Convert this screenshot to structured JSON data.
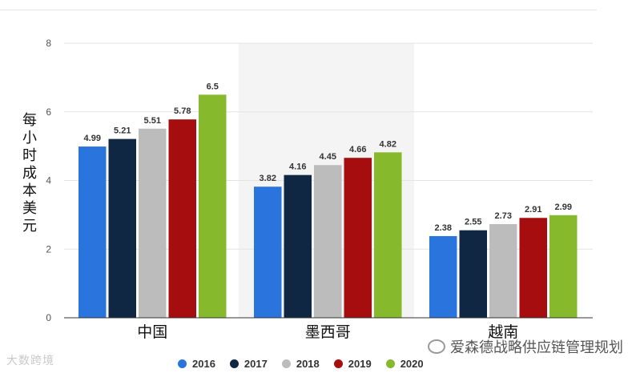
{
  "chart_data": {
    "type": "bar",
    "categories": [
      "中国",
      "墨西哥",
      "越南"
    ],
    "series": [
      {
        "name": "2016",
        "color": "#2a75dd",
        "values": [
          4.99,
          3.82,
          2.38
        ],
        "labels": [
          "4.99",
          "3.82",
          "2.38"
        ]
      },
      {
        "name": "2017",
        "color": "#0f2743",
        "values": [
          5.21,
          4.16,
          2.55
        ],
        "labels": [
          "5.21",
          "4.16",
          "2.55"
        ]
      },
      {
        "name": "2018",
        "color": "#bcbcbc",
        "values": [
          5.51,
          4.45,
          2.73
        ],
        "labels": [
          "5.51",
          "4.45",
          "2.73"
        ]
      },
      {
        "name": "2019",
        "color": "#a50d0f",
        "values": [
          5.78,
          4.66,
          2.91
        ],
        "labels": [
          "5.78",
          "4.66",
          "2.91"
        ]
      },
      {
        "name": "2020",
        "color": "#86b92b",
        "values": [
          6.5,
          4.82,
          2.99
        ],
        "labels": [
          "6.5",
          "4.82",
          "2.99"
        ]
      }
    ],
    "ylabel": "每小时成本美元",
    "ylim": [
      0,
      8
    ],
    "yticks": [
      "0",
      "2",
      "4",
      "6",
      "8"
    ],
    "grid": true,
    "legend_position": "bottom"
  },
  "watermarks": {
    "left": "大数跨境",
    "right": "爱森德战略供应链管理规划"
  }
}
